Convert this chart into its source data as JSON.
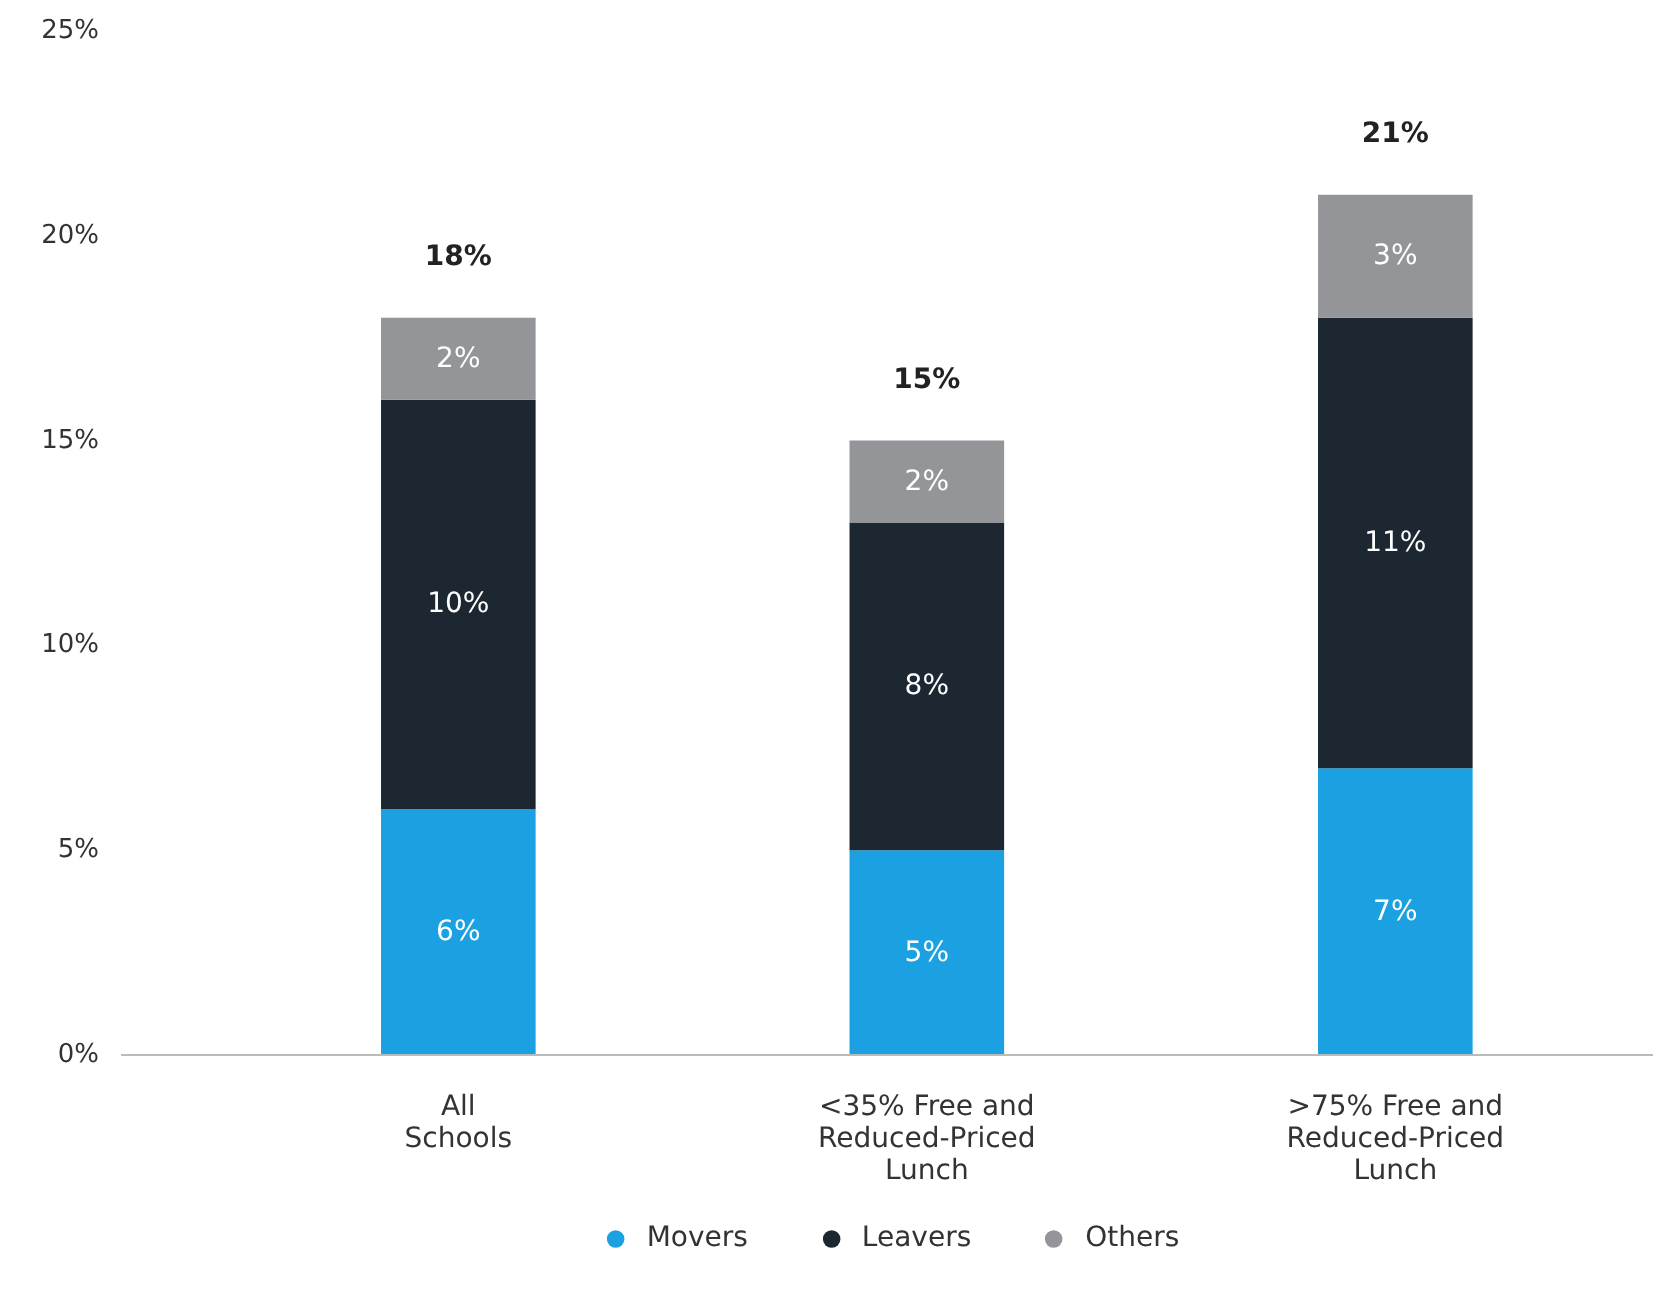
{
  "chart_data": {
    "type": "bar",
    "stacked": true,
    "categories": [
      "All\nSchools",
      "<35% Free and\nReduced-Priced\nLunch",
      ">75% Free and\nReduced-Priced\nLunch"
    ],
    "series": [
      {
        "name": "Movers",
        "color": "#1ba1e2",
        "values": [
          6,
          5,
          7
        ],
        "value_labels": [
          "6%",
          "5%",
          "7%"
        ]
      },
      {
        "name": "Leavers",
        "color": "#1c2731",
        "values": [
          10,
          8,
          11
        ],
        "value_labels": [
          "10%",
          "8%",
          "11%"
        ]
      },
      {
        "name": "Others",
        "color": "#939598",
        "values": [
          2,
          2,
          3
        ],
        "value_labels": [
          "2%",
          "2%",
          "3%"
        ]
      }
    ],
    "totals": [
      "18%",
      "15%",
      "21%"
    ],
    "ylim": [
      0,
      25
    ],
    "yticks": [
      {
        "value": 0,
        "label": "0%"
      },
      {
        "value": 5,
        "label": "5%"
      },
      {
        "value": 10,
        "label": "10%"
      },
      {
        "value": 15,
        "label": "15%"
      },
      {
        "value": 20,
        "label": "20%"
      },
      {
        "value": 25,
        "label": "25%"
      }
    ],
    "grid": false,
    "legend": "bottom"
  }
}
